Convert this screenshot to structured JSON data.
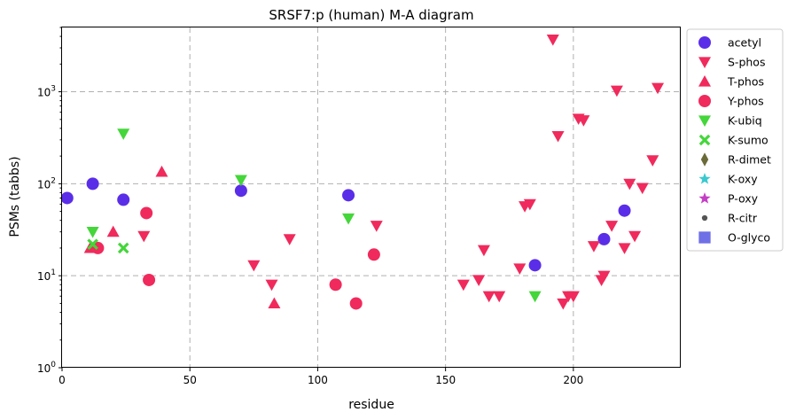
{
  "chart_data": {
    "type": "scatter",
    "title": "SRSF7:p (human) M-A diagram",
    "xlabel": "residue",
    "ylabel": "PSMs (tabbs)",
    "xlim": [
      0,
      242
    ],
    "ylim": [
      1,
      5000
    ],
    "yscale": "log",
    "xticks": [
      0,
      50,
      100,
      150,
      200
    ],
    "yticks": [
      {
        "value": 1,
        "base": "10",
        "exp": "0"
      },
      {
        "value": 10,
        "base": "10",
        "exp": "1"
      },
      {
        "value": 100,
        "base": "10",
        "exp": "2"
      },
      {
        "value": 1000,
        "base": "10",
        "exp": "3"
      }
    ],
    "grid": true,
    "legend_position": "outside-right",
    "series": [
      {
        "name": "acetyl",
        "marker": "circle",
        "color": "#5a2ee8",
        "points": [
          [
            2,
            70
          ],
          [
            12,
            100
          ],
          [
            24,
            67
          ],
          [
            70,
            84
          ],
          [
            112,
            75
          ],
          [
            185,
            13
          ],
          [
            212,
            25
          ],
          [
            220,
            51
          ]
        ]
      },
      {
        "name": "S-phos",
        "marker": "triangle-down",
        "color": "#f02a5c",
        "points": [
          [
            32,
            27
          ],
          [
            75,
            13
          ],
          [
            82,
            8
          ],
          [
            89,
            25
          ],
          [
            123,
            35
          ],
          [
            157,
            8
          ],
          [
            163,
            9
          ],
          [
            165,
            19
          ],
          [
            167,
            6
          ],
          [
            171,
            6
          ],
          [
            179,
            12
          ],
          [
            181,
            57
          ],
          [
            183,
            60
          ],
          [
            192,
            3700
          ],
          [
            194,
            330
          ],
          [
            196,
            5
          ],
          [
            198,
            6
          ],
          [
            200,
            6
          ],
          [
            202,
            510
          ],
          [
            204,
            490
          ],
          [
            208,
            21
          ],
          [
            211,
            9
          ],
          [
            212,
            10
          ],
          [
            215,
            35
          ],
          [
            217,
            1030
          ],
          [
            220,
            20
          ],
          [
            222,
            100
          ],
          [
            224,
            27
          ],
          [
            227,
            90
          ],
          [
            231,
            180
          ],
          [
            233,
            1100
          ]
        ]
      },
      {
        "name": "T-phos",
        "marker": "triangle-up",
        "color": "#f02a5c",
        "points": [
          [
            11,
            20
          ],
          [
            20,
            30
          ],
          [
            39,
            135
          ],
          [
            83,
            5
          ]
        ]
      },
      {
        "name": "Y-phos",
        "marker": "circle",
        "color": "#f02a5c",
        "points": [
          [
            14,
            20
          ],
          [
            33,
            48
          ],
          [
            34,
            9
          ],
          [
            107,
            8
          ],
          [
            115,
            5
          ],
          [
            122,
            17
          ]
        ]
      },
      {
        "name": "K-ubiq",
        "marker": "triangle-down",
        "color": "#44d63a",
        "points": [
          [
            12,
            30
          ],
          [
            24,
            350
          ],
          [
            70,
            110
          ],
          [
            112,
            42
          ],
          [
            185,
            6
          ]
        ]
      },
      {
        "name": "K-sumo",
        "marker": "x",
        "color": "#44d63a",
        "points": [
          [
            12,
            22
          ],
          [
            24,
            20
          ]
        ]
      },
      {
        "name": "R-dimet",
        "marker": "diamond",
        "color": "#6b6b3a",
        "points": []
      },
      {
        "name": "K-oxy",
        "marker": "star",
        "color": "#3ac9cf",
        "points": []
      },
      {
        "name": "P-oxy",
        "marker": "star",
        "color": "#c43fc4",
        "points": []
      },
      {
        "name": "R-citr",
        "marker": "dot",
        "color": "#555555",
        "points": []
      },
      {
        "name": "O-glyco",
        "marker": "square",
        "color": "#6f6fe6",
        "points": []
      }
    ]
  }
}
